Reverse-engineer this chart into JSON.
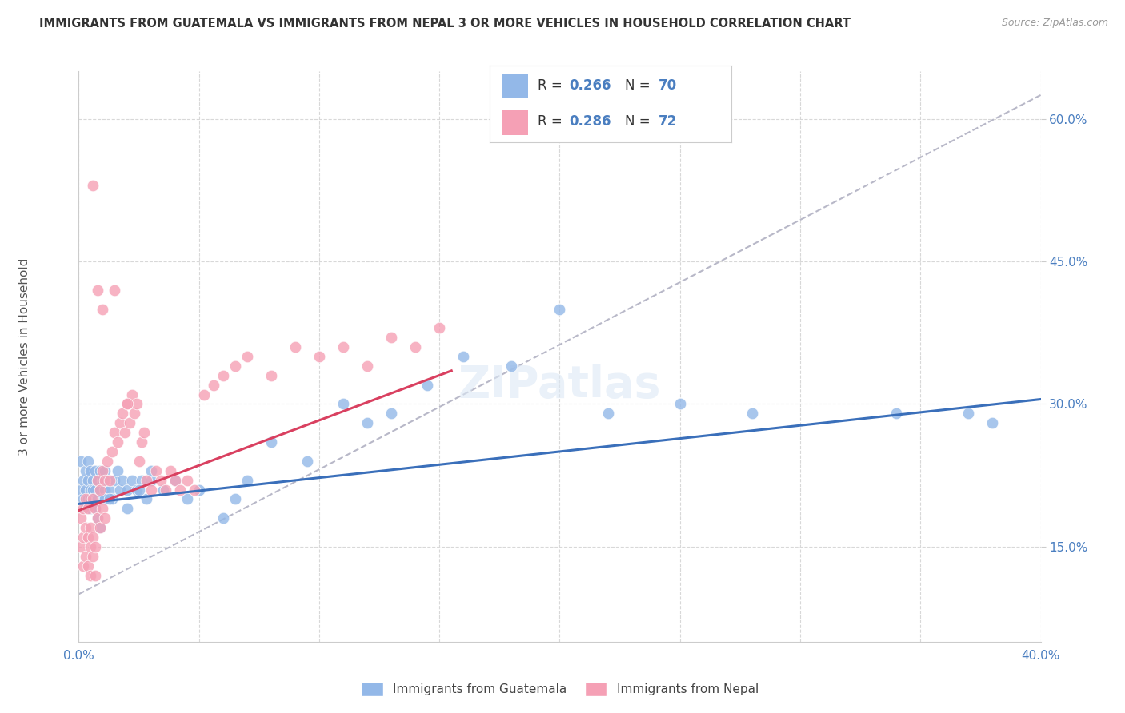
{
  "title": "IMMIGRANTS FROM GUATEMALA VS IMMIGRANTS FROM NEPAL 3 OR MORE VEHICLES IN HOUSEHOLD CORRELATION CHART",
  "source": "Source: ZipAtlas.com",
  "ylabel": "3 or more Vehicles in Household",
  "x_min": 0.0,
  "x_max": 0.4,
  "y_min": 0.05,
  "y_max": 0.65,
  "y_ticks": [
    0.15,
    0.3,
    0.45,
    0.6
  ],
  "y_tick_labels": [
    "15.0%",
    "30.0%",
    "45.0%",
    "60.0%"
  ],
  "color_blue": "#93b8e8",
  "color_pink": "#f5a0b5",
  "color_blue_line": "#3a6fba",
  "color_pink_line": "#d94060",
  "color_diag_line": "#b8b8c8",
  "color_grid": "#d8d8d8",
  "color_title": "#333333",
  "color_source": "#999999",
  "color_right_label": "#4a7ec0",
  "legend_label_bottom1": "Immigrants from Guatemala",
  "legend_label_bottom2": "Immigrants from Nepal",
  "guatemala_x": [
    0.001,
    0.001,
    0.002,
    0.002,
    0.003,
    0.003,
    0.003,
    0.004,
    0.004,
    0.004,
    0.005,
    0.005,
    0.005,
    0.005,
    0.006,
    0.006,
    0.006,
    0.007,
    0.007,
    0.008,
    0.008,
    0.009,
    0.009,
    0.01,
    0.01,
    0.011,
    0.011,
    0.012,
    0.013,
    0.014,
    0.015,
    0.016,
    0.017,
    0.018,
    0.02,
    0.022,
    0.024,
    0.026,
    0.028,
    0.03,
    0.035,
    0.04,
    0.045,
    0.05,
    0.06,
    0.065,
    0.07,
    0.08,
    0.095,
    0.11,
    0.12,
    0.13,
    0.145,
    0.16,
    0.18,
    0.2,
    0.22,
    0.25,
    0.28,
    0.34,
    0.37,
    0.38,
    0.007,
    0.008,
    0.009,
    0.011,
    0.013,
    0.02,
    0.025,
    0.03
  ],
  "guatemala_y": [
    0.24,
    0.21,
    0.22,
    0.2,
    0.23,
    0.21,
    0.19,
    0.22,
    0.2,
    0.24,
    0.21,
    0.23,
    0.2,
    0.19,
    0.22,
    0.21,
    0.2,
    0.23,
    0.21,
    0.22,
    0.2,
    0.23,
    0.21,
    0.22,
    0.2,
    0.21,
    0.23,
    0.22,
    0.21,
    0.2,
    0.22,
    0.23,
    0.21,
    0.22,
    0.21,
    0.22,
    0.21,
    0.22,
    0.2,
    0.22,
    0.21,
    0.22,
    0.2,
    0.21,
    0.18,
    0.2,
    0.22,
    0.26,
    0.24,
    0.3,
    0.28,
    0.29,
    0.32,
    0.35,
    0.34,
    0.4,
    0.29,
    0.3,
    0.29,
    0.29,
    0.29,
    0.28,
    0.19,
    0.18,
    0.17,
    0.2,
    0.2,
    0.19,
    0.21,
    0.23
  ],
  "nepal_x": [
    0.001,
    0.001,
    0.002,
    0.002,
    0.002,
    0.003,
    0.003,
    0.003,
    0.004,
    0.004,
    0.004,
    0.005,
    0.005,
    0.005,
    0.006,
    0.006,
    0.006,
    0.007,
    0.007,
    0.007,
    0.008,
    0.008,
    0.009,
    0.009,
    0.01,
    0.01,
    0.011,
    0.011,
    0.012,
    0.013,
    0.014,
    0.015,
    0.016,
    0.017,
    0.018,
    0.019,
    0.02,
    0.021,
    0.022,
    0.023,
    0.024,
    0.025,
    0.026,
    0.027,
    0.028,
    0.03,
    0.032,
    0.034,
    0.036,
    0.038,
    0.04,
    0.042,
    0.045,
    0.048,
    0.052,
    0.056,
    0.06,
    0.065,
    0.07,
    0.08,
    0.09,
    0.1,
    0.11,
    0.12,
    0.13,
    0.14,
    0.15,
    0.01,
    0.015,
    0.02,
    0.008,
    0.006
  ],
  "nepal_y": [
    0.18,
    0.15,
    0.19,
    0.16,
    0.13,
    0.17,
    0.14,
    0.2,
    0.16,
    0.13,
    0.19,
    0.15,
    0.17,
    0.12,
    0.2,
    0.16,
    0.14,
    0.19,
    0.15,
    0.12,
    0.22,
    0.18,
    0.21,
    0.17,
    0.23,
    0.19,
    0.22,
    0.18,
    0.24,
    0.22,
    0.25,
    0.27,
    0.26,
    0.28,
    0.29,
    0.27,
    0.3,
    0.28,
    0.31,
    0.29,
    0.3,
    0.24,
    0.26,
    0.27,
    0.22,
    0.21,
    0.23,
    0.22,
    0.21,
    0.23,
    0.22,
    0.21,
    0.22,
    0.21,
    0.31,
    0.32,
    0.33,
    0.34,
    0.35,
    0.33,
    0.36,
    0.35,
    0.36,
    0.34,
    0.37,
    0.36,
    0.38,
    0.4,
    0.42,
    0.3,
    0.42,
    0.53
  ],
  "blue_line_x": [
    0.0,
    0.4
  ],
  "blue_line_y": [
    0.195,
    0.305
  ],
  "pink_line_x": [
    0.0,
    0.155
  ],
  "pink_line_y": [
    0.188,
    0.335
  ],
  "diag_line_x": [
    0.0,
    0.4
  ],
  "diag_line_y": [
    0.1,
    0.625
  ]
}
